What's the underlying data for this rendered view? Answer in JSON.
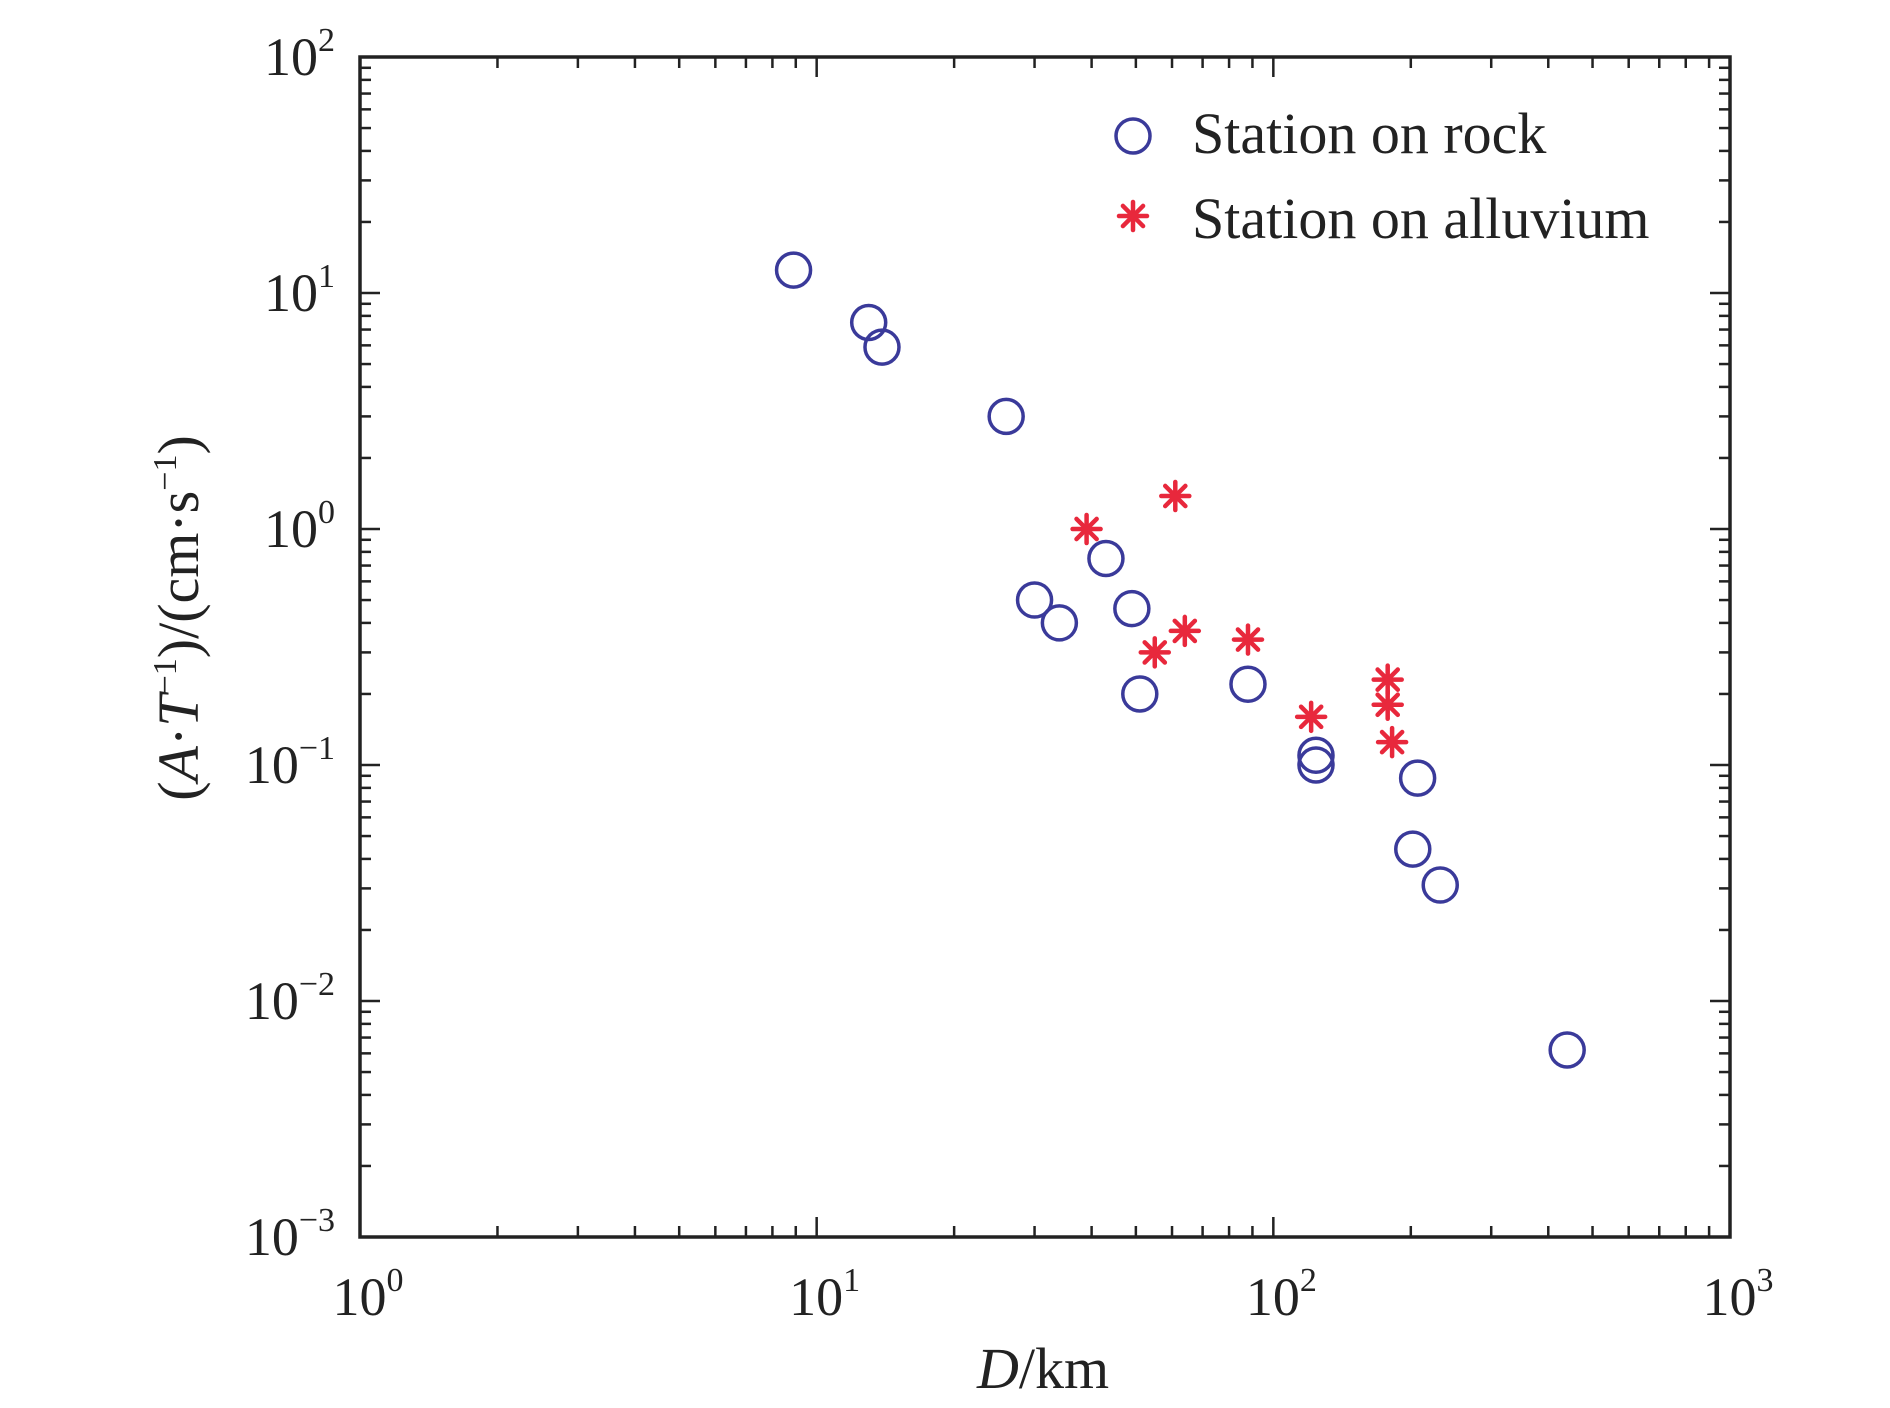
{
  "chart_data": {
    "type": "scatter",
    "xscale": "log",
    "yscale": "log",
    "xlim": [
      1,
      1000
    ],
    "ylim": [
      0.001,
      100
    ],
    "grid": false,
    "legend_position": "top-right",
    "xlabel": {
      "italic": "D",
      "rest": "/km"
    },
    "ylabel": {
      "pre": "(",
      "A": "A",
      "dot1": "·",
      "T": "T",
      "sup1": "−1",
      "mid": ")/(cm·s",
      "sup2": "−1",
      "post": ")"
    },
    "x_ticks": [
      {
        "value": 1,
        "base": "10",
        "exp": "0"
      },
      {
        "value": 10,
        "base": "10",
        "exp": "1"
      },
      {
        "value": 100,
        "base": "10",
        "exp": "2"
      },
      {
        "value": 1000,
        "base": "10",
        "exp": "3"
      }
    ],
    "y_ticks": [
      {
        "value": 0.001,
        "base": "10",
        "exp": "−3"
      },
      {
        "value": 0.01,
        "base": "10",
        "exp": "−2"
      },
      {
        "value": 0.1,
        "base": "10",
        "exp": "−1"
      },
      {
        "value": 1,
        "base": "10",
        "exp": "0"
      },
      {
        "value": 10,
        "base": "10",
        "exp": "1"
      },
      {
        "value": 100,
        "base": "10",
        "exp": "2"
      }
    ],
    "series": [
      {
        "name": "Station on rock",
        "marker": "circle",
        "color": "#3a3a9a",
        "points": [
          {
            "x": 8.9,
            "y": 12.5
          },
          {
            "x": 13.0,
            "y": 7.5
          },
          {
            "x": 13.9,
            "y": 5.9
          },
          {
            "x": 26.0,
            "y": 3.0
          },
          {
            "x": 30.0,
            "y": 0.5
          },
          {
            "x": 34.0,
            "y": 0.4
          },
          {
            "x": 43.0,
            "y": 0.75
          },
          {
            "x": 49.0,
            "y": 0.46
          },
          {
            "x": 51.0,
            "y": 0.2
          },
          {
            "x": 88.0,
            "y": 0.22
          },
          {
            "x": 124.0,
            "y": 0.11
          },
          {
            "x": 124.0,
            "y": 0.1
          },
          {
            "x": 207.0,
            "y": 0.088
          },
          {
            "x": 202.0,
            "y": 0.044
          },
          {
            "x": 232.0,
            "y": 0.031
          },
          {
            "x": 440.0,
            "y": 0.0062
          }
        ]
      },
      {
        "name": "Station on alluvium",
        "marker": "asterisk",
        "color": "#e8283c",
        "points": [
          {
            "x": 39.0,
            "y": 1.0
          },
          {
            "x": 61.0,
            "y": 1.38
          },
          {
            "x": 55.0,
            "y": 0.3
          },
          {
            "x": 64.0,
            "y": 0.37
          },
          {
            "x": 88.0,
            "y": 0.34
          },
          {
            "x": 121.0,
            "y": 0.16
          },
          {
            "x": 178.0,
            "y": 0.23
          },
          {
            "x": 178.0,
            "y": 0.18
          },
          {
            "x": 182.0,
            "y": 0.125
          }
        ]
      }
    ]
  }
}
